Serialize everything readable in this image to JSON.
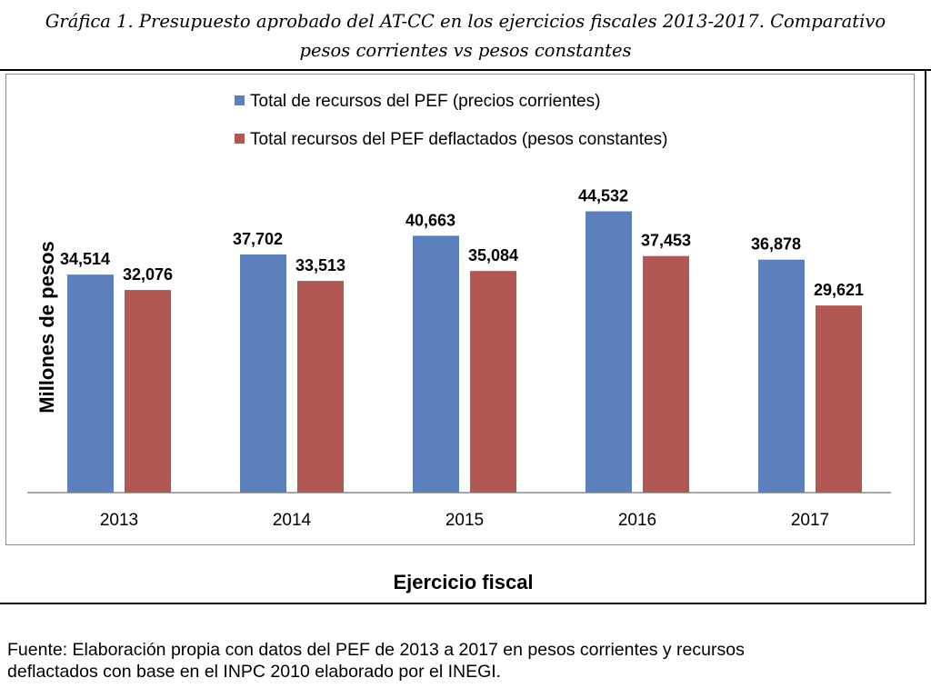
{
  "title": {
    "line1": "Gráfica 1. Presupuesto aprobado del AT-CC en los ejercicios fiscales 2013-2017. Comparativo",
    "line2": "pesos corrientes vs pesos constantes"
  },
  "source": {
    "line1": "Fuente: Elaboración propia con datos del PEF de 2013 a 2017 en pesos corrientes y recursos",
    "line2": "deflactados con base en el INPC 2010 elaborado por el INEGI."
  },
  "chart_data": {
    "type": "bar",
    "xlabel": "Ejercicio fiscal",
    "ylabel": "Millones de pesos",
    "categories": [
      "2013",
      "2014",
      "2015",
      "2016",
      "2017"
    ],
    "ylim": [
      0,
      50000
    ],
    "grid": false,
    "legend_position": "top-left",
    "series": [
      {
        "name": "Total de recursos del PEF (precios corrientes)",
        "color": "#5b80bd",
        "values": [
          34514,
          37702,
          40663,
          44532,
          36878
        ],
        "labels": [
          "34,514",
          "37,702",
          "40,663",
          "44,532",
          "36,878"
        ]
      },
      {
        "name": "Total recursos del PEF deflactados (pesos constantes)",
        "color": "#b35753",
        "values": [
          32076,
          33513,
          35084,
          37453,
          29621
        ],
        "labels": [
          "32,076",
          "33,513",
          "35,084",
          "37,453",
          "29,621"
        ]
      }
    ]
  }
}
